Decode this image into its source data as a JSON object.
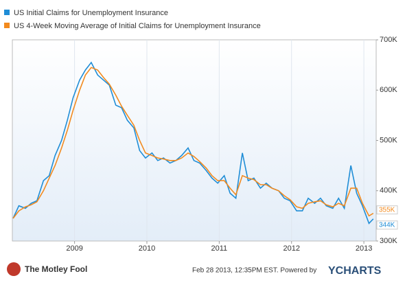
{
  "chart_data": {
    "type": "line",
    "x": [
      2008.15,
      2008.23,
      2008.32,
      2008.4,
      2008.48,
      2008.57,
      2008.65,
      2008.73,
      2008.82,
      2008.9,
      2008.98,
      2009.07,
      2009.15,
      2009.23,
      2009.32,
      2009.4,
      2009.48,
      2009.57,
      2009.65,
      2009.73,
      2009.82,
      2009.9,
      2009.98,
      2010.07,
      2010.15,
      2010.23,
      2010.32,
      2010.4,
      2010.48,
      2010.57,
      2010.65,
      2010.73,
      2010.82,
      2010.9,
      2010.98,
      2011.07,
      2011.15,
      2011.23,
      2011.32,
      2011.4,
      2011.48,
      2011.57,
      2011.65,
      2011.73,
      2011.82,
      2011.9,
      2011.98,
      2012.07,
      2012.15,
      2012.23,
      2012.32,
      2012.4,
      2012.48,
      2012.57,
      2012.65,
      2012.73,
      2012.82,
      2012.9,
      2012.98,
      2013.07,
      2013.13
    ],
    "series": [
      {
        "name": "US Initial Claims for Unemployment Insurance",
        "color": "#1f8dd6",
        "values": [
          345000,
          370000,
          365000,
          375000,
          380000,
          420000,
          430000,
          470000,
          500000,
          540000,
          585000,
          620000,
          640000,
          655000,
          630000,
          620000,
          610000,
          570000,
          565000,
          540000,
          525000,
          480000,
          465000,
          475000,
          460000,
          465000,
          455000,
          460000,
          470000,
          485000,
          460000,
          455000,
          440000,
          425000,
          415000,
          430000,
          395000,
          385000,
          475000,
          420000,
          425000,
          405000,
          415000,
          405000,
          400000,
          385000,
          380000,
          360000,
          360000,
          385000,
          375000,
          385000,
          370000,
          365000,
          385000,
          365000,
          450000,
          395000,
          370000,
          335000,
          344000
        ],
        "value_labels": [
          null,
          null,
          null,
          null,
          null,
          null,
          null,
          null,
          null,
          null,
          null,
          null,
          null,
          null,
          null,
          null,
          null,
          null,
          null,
          null,
          null,
          null,
          null,
          null,
          null,
          null,
          null,
          null,
          null,
          null,
          null,
          null,
          null,
          null,
          null,
          null,
          null,
          null,
          null,
          null,
          null,
          null,
          null,
          null,
          null,
          null,
          null,
          null,
          null,
          null,
          null,
          null,
          null,
          null,
          null,
          null,
          null,
          null,
          null,
          null,
          "344K"
        ]
      },
      {
        "name": "US 4-Week Moving Average of Initial Claims for Unemployment Insurance",
        "color": "#f28a1e",
        "values": [
          345000,
          360000,
          368000,
          372000,
          378000,
          400000,
          425000,
          450000,
          485000,
          520000,
          560000,
          600000,
          630000,
          645000,
          640000,
          625000,
          612000,
          590000,
          568000,
          550000,
          530000,
          500000,
          475000,
          470000,
          465000,
          463000,
          460000,
          460000,
          465000,
          475000,
          468000,
          458000,
          445000,
          430000,
          420000,
          420000,
          405000,
          392000,
          430000,
          425000,
          422000,
          412000,
          412000,
          405000,
          400000,
          390000,
          382000,
          368000,
          365000,
          375000,
          378000,
          380000,
          372000,
          368000,
          375000,
          370000,
          405000,
          405000,
          375000,
          350000,
          355000
        ],
        "value_labels": [
          null,
          null,
          null,
          null,
          null,
          null,
          null,
          null,
          null,
          null,
          null,
          null,
          null,
          null,
          null,
          null,
          null,
          null,
          null,
          null,
          null,
          null,
          null,
          null,
          null,
          null,
          null,
          null,
          null,
          null,
          null,
          null,
          null,
          null,
          null,
          null,
          null,
          null,
          null,
          null,
          null,
          null,
          null,
          null,
          null,
          null,
          null,
          null,
          null,
          null,
          null,
          null,
          null,
          null,
          null,
          null,
          null,
          null,
          null,
          null,
          "355K"
        ]
      }
    ],
    "xlim": [
      2008.14,
      2013.17
    ],
    "xticks": [
      2009,
      2010,
      2011,
      2012,
      2013
    ],
    "ylim": [
      300000,
      700000
    ],
    "yticks": [
      {
        "value": 300000,
        "label": "300K"
      },
      {
        "value": 400000,
        "label": "400K"
      },
      {
        "value": 500000,
        "label": "500K"
      },
      {
        "value": 600000,
        "label": "600K"
      },
      {
        "value": 700000,
        "label": "700K"
      }
    ],
    "grid": true
  },
  "footer": {
    "brand": "The Motley Fool",
    "timestamp": "Feb 28 2013, 12:35PM EST.  Powered by",
    "provider": "YCHARTS"
  }
}
